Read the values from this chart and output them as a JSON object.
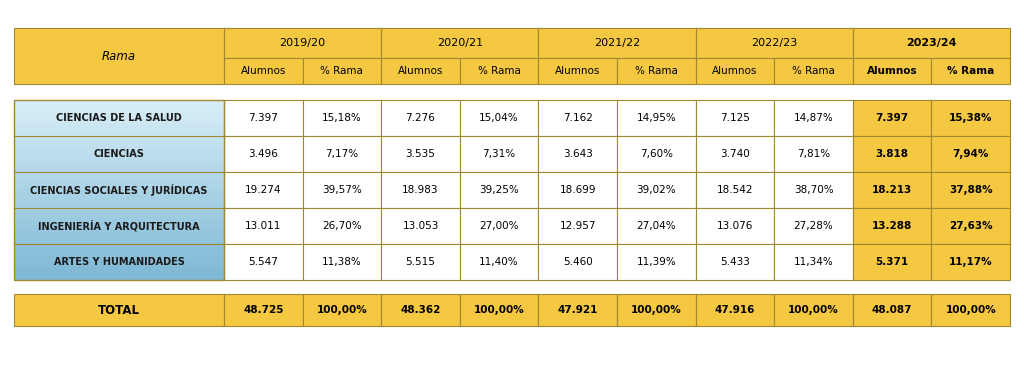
{
  "header_years": [
    "2019/20",
    "2020/21",
    "2021/22",
    "2022/23",
    "2023/24"
  ],
  "subheaders": [
    "Alumnos",
    "% Rama"
  ],
  "rama_label": "Rama",
  "rows": [
    {
      "name": "CIENCIAS DE LA SALUD",
      "values": [
        "7.397",
        "15,18%",
        "7.276",
        "15,04%",
        "7.162",
        "14,95%",
        "7.125",
        "14,87%",
        "7.397",
        "15,38%"
      ]
    },
    {
      "name": "CIENCIAS",
      "values": [
        "3.496",
        "7,17%",
        "3.535",
        "7,31%",
        "3.643",
        "7,60%",
        "3.740",
        "7,81%",
        "3.818",
        "7,94%"
      ]
    },
    {
      "name": "CIENCIAS SOCIALES Y JURÍDICAS",
      "values": [
        "19.274",
        "39,57%",
        "18.983",
        "39,25%",
        "18.699",
        "39,02%",
        "18.542",
        "38,70%",
        "18.213",
        "37,88%"
      ]
    },
    {
      "name": "INGENIERÍA Y ARQUITECTURA",
      "values": [
        "13.011",
        "26,70%",
        "13.053",
        "27,00%",
        "12.957",
        "27,04%",
        "13.076",
        "27,28%",
        "13.288",
        "27,63%"
      ]
    },
    {
      "name": "ARTES Y HUMANIDADES",
      "values": [
        "5.547",
        "11,38%",
        "5.515",
        "11,40%",
        "5.460",
        "11,39%",
        "5.433",
        "11,34%",
        "5.371",
        "11,17%"
      ]
    }
  ],
  "total_row": {
    "name": "TOTAL",
    "values": [
      "48.725",
      "100,00%",
      "48.362",
      "100,00%",
      "47.921",
      "100,00%",
      "47.916",
      "100,00%",
      "48.087",
      "100,00%"
    ]
  },
  "color_gold": "#F5C842",
  "color_blue_top": "#7EB8D4",
  "color_blue_bot": "#D8EEF8",
  "color_border": "#A08830",
  "color_white": "#FFFFFF",
  "color_bg": "#FFFFFF",
  "color_text": "#1A1A1A",
  "fig_w": 10.24,
  "fig_h": 3.84,
  "dpi": 100
}
